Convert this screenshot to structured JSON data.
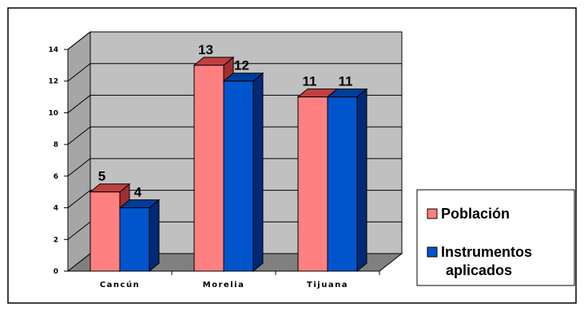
{
  "chart_data": {
    "type": "bar",
    "categories": [
      "Cancún",
      "Morelia",
      "Tijuana"
    ],
    "series": [
      {
        "name": "Población",
        "values": [
          5,
          13,
          11
        ]
      },
      {
        "name": "Instrumentos aplicados",
        "values": [
          4,
          12,
          11
        ]
      }
    ],
    "ylim": [
      0,
      14
    ],
    "yticks": [
      0,
      2,
      4,
      6,
      8,
      10,
      12,
      14
    ],
    "grid": true,
    "three_d": true,
    "legend_position": "right",
    "legend_lines": [
      [
        "Población"
      ],
      [
        "Instrumentos",
        "aplicados"
      ]
    ],
    "colors": {
      "series": [
        "#ff8080",
        "#0055cc"
      ],
      "series_top": [
        "#c04040",
        "#003c99"
      ],
      "series_side": [
        "#a03030",
        "#002a77"
      ],
      "back_wall": "#c0c0c0",
      "floor": "#808080",
      "side_wall": "#a6a6a6",
      "gridline": "#000000"
    }
  }
}
